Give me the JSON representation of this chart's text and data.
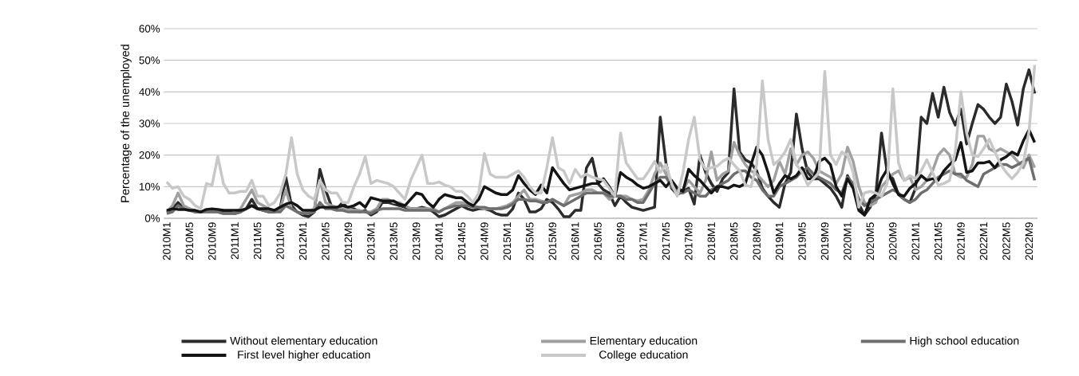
{
  "chart_data": {
    "type": "line",
    "ylabel": "Percentage of the unemployed",
    "categories": [
      "2010M1",
      null,
      null,
      null,
      "2010M5",
      null,
      null,
      null,
      "2010M9",
      null,
      null,
      null,
      "2011M1",
      null,
      null,
      null,
      "2011M5",
      null,
      null,
      null,
      "2011M9",
      null,
      null,
      null,
      "2012M1",
      null,
      null,
      null,
      "2012M5",
      null,
      null,
      null,
      "2012M9",
      null,
      null,
      null,
      "2013M1",
      null,
      null,
      null,
      "2013M5",
      null,
      null,
      null,
      "2013M9",
      null,
      null,
      null,
      "2014M1",
      null,
      null,
      null,
      "2014M5",
      null,
      null,
      null,
      "2014M9",
      null,
      null,
      null,
      "2015M1",
      null,
      null,
      null,
      "2015M5",
      null,
      null,
      null,
      "2015M9",
      null,
      null,
      null,
      "2016M1",
      null,
      null,
      null,
      "2016M5",
      null,
      null,
      null,
      "2016M9",
      null,
      null,
      null,
      "2017M1",
      null,
      null,
      null,
      "2017M5",
      null,
      null,
      null,
      "2017M9",
      null,
      null,
      null,
      "2018M1",
      null,
      null,
      null,
      "2018M5",
      null,
      null,
      null,
      "2018M9",
      null,
      null,
      null,
      "2019M1",
      null,
      null,
      null,
      "2019M5",
      null,
      null,
      null,
      "2019M9",
      null,
      null,
      null,
      "2020M1",
      null,
      null,
      null,
      "2020M5",
      null,
      null,
      null,
      "2020M9",
      null,
      null,
      null,
      "2021M1",
      null,
      null,
      null,
      "2021M5",
      null,
      null,
      null,
      "2021M9",
      null,
      null,
      null,
      "2022M1",
      null,
      null,
      null,
      "2022M5",
      null,
      null,
      null,
      "2022M9",
      null
    ],
    "series": [
      {
        "name": "Without elementary education",
        "color": "#2b2b2b",
        "values": [
          2,
          3,
          5,
          3,
          3,
          2,
          2,
          2.5,
          2.5,
          2,
          2,
          2,
          1.5,
          2,
          3,
          6,
          3,
          2.5,
          2,
          2,
          3,
          13,
          4,
          2,
          1,
          0.5,
          2,
          15.5,
          9,
          4,
          3,
          5,
          3,
          3,
          2,
          2.5,
          1,
          2,
          5,
          5,
          4.5,
          4,
          3.5,
          3,
          3,
          3.5,
          3,
          2,
          0.5,
          1,
          2,
          3,
          4,
          3,
          2.5,
          3,
          3,
          2.5,
          1.5,
          1,
          1,
          3,
          8,
          6,
          2,
          2,
          3,
          6,
          5,
          3,
          0.5,
          0.5,
          2.5,
          2.5,
          16,
          19,
          11,
          9,
          8,
          4,
          7,
          5,
          3.5,
          3,
          2.5,
          3,
          3.5,
          32,
          17.5,
          9.5,
          7.5,
          8.5,
          9.5,
          4.5,
          20,
          14.5,
          11,
          8.5,
          12.5,
          14.5,
          41,
          21,
          18.5,
          17.5,
          15,
          9.5,
          7,
          5,
          3.5,
          11,
          14.5,
          33,
          22,
          14.5,
          12.5,
          12.5,
          11,
          9.5,
          7,
          3.5,
          13.5,
          10,
          4.5,
          1,
          3.5,
          7.5,
          27,
          14.5,
          12.5,
          7.5,
          6,
          5,
          9.5,
          32,
          30,
          39.5,
          32,
          41.5,
          33.5,
          29.5,
          34.5,
          23.5,
          30,
          36,
          34.5,
          32,
          30,
          32,
          42.5,
          37,
          29.5,
          41,
          47,
          39.5
        ]
      },
      {
        "name": "Elementary education",
        "color": "#a0a0a0",
        "values": [
          2,
          4,
          8,
          4,
          3,
          2.5,
          2,
          2,
          2,
          2,
          1.5,
          1.5,
          1.5,
          3,
          6,
          9,
          5,
          4,
          3,
          2.5,
          3,
          9,
          3,
          2,
          1.5,
          2,
          3,
          12,
          5,
          4,
          3.5,
          3,
          3,
          2.5,
          2.5,
          2,
          2,
          3,
          6,
          6,
          5,
          5,
          4,
          3,
          3,
          3,
          3,
          3,
          2,
          3,
          4,
          5,
          5,
          4.5,
          4,
          3.5,
          3,
          3,
          3,
          3.5,
          4,
          5,
          7,
          9,
          6,
          6,
          5.5,
          5,
          6,
          5,
          4,
          7,
          7.5,
          8,
          9,
          9,
          8,
          8,
          6,
          7,
          7,
          7,
          6,
          5.5,
          6,
          9,
          14,
          17.5,
          14,
          11,
          9,
          9,
          12,
          10,
          8,
          12,
          21,
          12,
          14,
          15,
          24,
          20,
          17,
          15,
          14,
          12,
          10,
          12,
          18,
          14,
          22,
          17,
          20,
          21,
          19,
          15,
          14,
          13,
          11,
          14,
          22.5,
          18,
          10,
          5,
          4,
          5,
          10,
          12,
          14,
          15,
          12,
          13,
          9,
          10,
          12,
          15,
          20,
          22,
          20,
          14,
          13,
          13,
          17,
          26,
          26,
          22,
          21,
          22,
          21,
          20,
          18,
          16,
          20,
          16
        ]
      },
      {
        "name": "High school education",
        "color": "#6e6e6e",
        "values": [
          1.5,
          2,
          4,
          3,
          2.5,
          2,
          2,
          2,
          2,
          2,
          1.5,
          1.5,
          1.5,
          2,
          3,
          4,
          3,
          2.5,
          2,
          2,
          2,
          4,
          3,
          2,
          1.5,
          1.5,
          2,
          5,
          3,
          3,
          2.5,
          2.5,
          2,
          2,
          2,
          2,
          1.5,
          2.5,
          3,
          3,
          3,
          3,
          2.5,
          2.5,
          2.5,
          2.5,
          2.5,
          2.5,
          2,
          3,
          3.5,
          4,
          4,
          4,
          3.5,
          3.5,
          3.5,
          3,
          3,
          3,
          3.5,
          4.5,
          6,
          6,
          5.5,
          5.5,
          5,
          5,
          6,
          5,
          4,
          5,
          6,
          7,
          8,
          8,
          8,
          8,
          7,
          7,
          7,
          6,
          6,
          5,
          5,
          8,
          11,
          13,
          13,
          10,
          8,
          8,
          9,
          8,
          7,
          7,
          9,
          10,
          11,
          12,
          14,
          15,
          15,
          13,
          12,
          9,
          7,
          7,
          10,
          11,
          12,
          13,
          15,
          16,
          14,
          13,
          12,
          11,
          9,
          8,
          13,
          11,
          6,
          4,
          5,
          6,
          7,
          8,
          9,
          8,
          6,
          5,
          6,
          8,
          9,
          11,
          13,
          14,
          15,
          14,
          14,
          12,
          11,
          10,
          14,
          15,
          16,
          17,
          17,
          16,
          17,
          18,
          19,
          12
        ]
      },
      {
        "name": "First level higher education",
        "color": "#141414",
        "values": [
          2.5,
          3,
          2.8,
          2.8,
          2.5,
          2.5,
          2,
          2.8,
          3,
          2.8,
          2.5,
          2.5,
          2.5,
          2.5,
          3,
          4,
          3,
          3,
          3,
          2.5,
          3.5,
          4.5,
          5,
          4,
          2.5,
          2.5,
          2.5,
          3.5,
          3.5,
          3.5,
          3.5,
          4,
          3.5,
          4,
          5,
          3.5,
          6.5,
          6,
          5.5,
          5.5,
          5.5,
          4.5,
          4,
          6,
          8,
          7.5,
          5,
          3.5,
          6,
          7.5,
          7,
          6.5,
          6.5,
          5,
          4,
          6,
          10,
          9,
          8,
          7.5,
          7.5,
          9,
          13.5,
          11,
          9,
          7.5,
          10.5,
          8,
          16,
          13.5,
          11,
          9,
          9.5,
          10,
          10.5,
          11,
          11,
          12.5,
          10,
          7,
          14.5,
          13,
          12,
          10.5,
          9.5,
          10,
          11,
          12,
          10,
          12,
          9.5,
          8.5,
          15.5,
          13.5,
          12,
          10,
          8,
          10,
          10,
          9.5,
          10.5,
          10,
          11,
          17,
          22.5,
          20,
          14.5,
          8,
          11,
          13.5,
          12.5,
          13.5,
          16,
          12.5,
          12.5,
          18,
          19,
          17,
          10,
          7,
          12.5,
          9.5,
          2.5,
          1,
          6,
          7.5,
          12.5,
          15.5,
          11,
          7.5,
          7,
          9.5,
          11,
          13.5,
          12,
          12.5,
          12,
          15,
          17,
          18.5,
          24,
          14.5,
          15,
          17.5,
          17.5,
          18,
          16,
          18.5,
          19.5,
          21,
          20,
          24.5,
          28,
          24
        ]
      },
      {
        "name": "College education",
        "color": "#c8c8c8",
        "values": [
          11.5,
          9.5,
          10,
          7,
          6,
          4,
          3,
          11,
          10.5,
          19.5,
          11,
          8,
          8,
          8.5,
          8.5,
          12,
          7,
          7,
          4,
          5,
          8,
          14,
          25.5,
          14,
          9,
          7,
          6,
          12,
          9,
          8,
          8,
          5,
          5,
          10,
          14,
          19.5,
          11,
          12,
          11.5,
          11,
          10,
          8,
          6,
          12,
          16,
          20,
          11,
          11,
          11.5,
          10.5,
          10,
          8.5,
          8.5,
          7,
          5,
          8,
          20.5,
          14,
          13,
          13,
          13,
          14,
          15,
          13,
          10,
          8,
          8,
          16,
          25.5,
          16,
          15,
          11,
          15.5,
          13,
          14,
          13,
          12.5,
          12,
          9.5,
          7,
          27,
          17.5,
          15,
          12.5,
          12.5,
          15,
          18,
          14.5,
          17,
          11,
          7,
          14.5,
          25,
          32,
          18.5,
          15.5,
          16,
          16.5,
          18,
          19,
          17,
          15,
          10.5,
          10,
          17,
          43.5,
          25,
          17,
          18.5,
          21,
          25,
          17,
          14.5,
          10.5,
          12.5,
          14.5,
          46.5,
          20,
          17,
          21,
          20,
          14.5,
          3.5,
          8,
          8.5,
          8,
          7,
          11,
          41,
          17.5,
          12,
          13.5,
          12.5,
          15,
          18.5,
          14.5,
          10.5,
          11,
          12,
          21,
          40,
          27,
          20,
          19.5,
          22,
          25,
          21,
          17,
          14.5,
          12.5,
          14.5,
          17.5,
          27.5,
          48.5
        ]
      }
    ],
    "ylim": [
      0,
      60
    ],
    "yticks": [
      {
        "value": 0,
        "label": "0%"
      },
      {
        "value": 10,
        "label": "10%"
      },
      {
        "value": 20,
        "label": "20%"
      },
      {
        "value": 30,
        "label": "30%"
      },
      {
        "value": 40,
        "label": "40%"
      },
      {
        "value": 50,
        "label": "50%"
      },
      {
        "value": 60,
        "label": "60%"
      }
    ],
    "grid": "y",
    "legend": "bottom"
  }
}
